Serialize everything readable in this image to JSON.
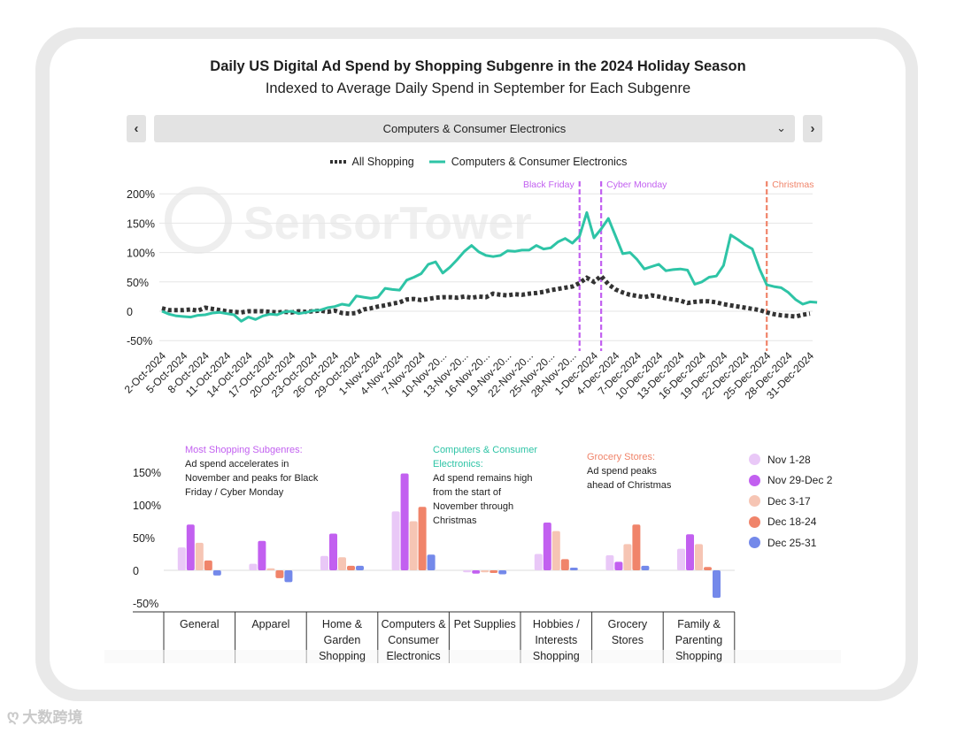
{
  "header": {
    "title": "Daily US Digital Ad Spend by Shopping Subgenre in the 2024 Holiday Season",
    "subtitle": "Indexed to Average Daily Spend in September for Each Subgenre"
  },
  "selector": {
    "prev": "‹",
    "next": "›",
    "selected": "Computers & Consumer Electronics",
    "chevron": "⌄"
  },
  "legend_top": {
    "all_shopping": "All Shopping",
    "subgenre": "Computers & Consumer Electronics"
  },
  "watermark": "SensorTower",
  "footer": {
    "logo_text": "大数跨境"
  },
  "colors": {
    "teal": "#2ec4a6",
    "dark": "#333333",
    "purple": "#c260f0",
    "christmas": "#f0846a"
  },
  "chart_data": [
    {
      "type": "line",
      "ylim": [
        -50,
        200
      ],
      "yticks": [
        "200%",
        "150%",
        "100%",
        "50%",
        "0",
        "-50%"
      ],
      "x_tick_labels": [
        "2-Oct-2024",
        "5-Oct-2024",
        "8-Oct-2024",
        "11-Oct-2024",
        "14-Oct-2024",
        "17-Oct-2024",
        "20-Oct-2024",
        "23-Oct-2024",
        "26-Oct-2024",
        "29-Oct-2024",
        "1-Nov-2024",
        "4-Nov-2024",
        "7-Nov-2024",
        "10-Nov-20...",
        "13-Nov-20...",
        "16-Nov-20...",
        "19-Nov-20...",
        "22-Nov-20...",
        "25-Nov-20...",
        "28-Nov-20...",
        "1-Dec-2024",
        "4-Dec-2024",
        "7-Dec-2024",
        "10-Dec-2024",
        "13-Dec-2024",
        "16-Dec-2024",
        "19-Dec-2024",
        "22-Dec-2024",
        "25-Dec-2024",
        "28-Dec-2024",
        "31-Dec-2024"
      ],
      "annotations": [
        {
          "label": "Black Friday",
          "day": 58,
          "color": "#c260f0"
        },
        {
          "label": "Cyber Monday",
          "day": 61,
          "color": "#c260f0"
        },
        {
          "label": "Christmas",
          "day": 84,
          "color": "#f0846a"
        }
      ],
      "series": [
        {
          "name": "All Shopping",
          "style": "dotted",
          "values": [
            5,
            2,
            2,
            2,
            3,
            1,
            6,
            4,
            2,
            0,
            -1,
            -2,
            0,
            0,
            0,
            -1,
            -2,
            -1,
            -2,
            0,
            -1,
            0,
            1,
            -1,
            1,
            -3,
            -4,
            -3,
            3,
            5,
            8,
            10,
            13,
            15,
            20,
            21,
            19,
            21,
            23,
            24,
            24,
            23,
            25,
            23,
            25,
            24,
            30,
            28,
            27,
            29,
            28,
            30,
            31,
            33,
            36,
            38,
            40,
            42,
            48,
            57,
            50,
            60,
            46,
            37,
            32,
            28,
            26,
            24,
            27,
            25,
            22,
            20,
            18,
            14,
            16,
            17,
            17,
            15,
            12,
            10,
            8,
            6,
            4,
            2,
            -2,
            -5,
            -7,
            -8,
            -9,
            -6,
            -4
          ]
        },
        {
          "name": "Computers & Consumer Electronics",
          "style": "solid",
          "values": [
            0,
            -5,
            -8,
            -9,
            -10,
            -7,
            -6,
            -3,
            -2,
            -4,
            -6,
            -17,
            -10,
            -14,
            -8,
            -5,
            -6,
            -1,
            0,
            -4,
            -2,
            1,
            2,
            6,
            8,
            12,
            10,
            26,
            24,
            22,
            24,
            39,
            37,
            36,
            53,
            58,
            64,
            80,
            84,
            65,
            75,
            88,
            102,
            112,
            101,
            95,
            93,
            95,
            103,
            102,
            104,
            104,
            112,
            106,
            108,
            118,
            124,
            116,
            128,
            168,
            125,
            140,
            158,
            128,
            98,
            100,
            88,
            72,
            76,
            80,
            69,
            71,
            72,
            70,
            46,
            50,
            58,
            60,
            78,
            130,
            122,
            113,
            106,
            72,
            45,
            42,
            40,
            32,
            20,
            12,
            16,
            15
          ]
        }
      ]
    },
    {
      "type": "bar",
      "ylim": [
        -50,
        150
      ],
      "yticks": [
        "150%",
        "100%",
        "50%",
        "0",
        "-50%"
      ],
      "categories": [
        "General",
        "Apparel",
        "Home & Garden Shopping",
        "Computers & Consumer Electronics",
        "Pet Supplies",
        "Hobbies / Interests Shopping",
        "Grocery Stores",
        "Family & Parenting Shopping"
      ],
      "series": [
        {
          "name": "Nov 1-28",
          "color": "#e9c8f7",
          "values": [
            35,
            10,
            22,
            90,
            -3,
            25,
            23,
            33
          ]
        },
        {
          "name": "Nov 29-Dec 2",
          "color": "#c260f0",
          "values": [
            70,
            45,
            56,
            148,
            -5,
            73,
            13,
            55
          ]
        },
        {
          "name": "Dec 3-17",
          "color": "#f6c5b4",
          "values": [
            42,
            3,
            20,
            75,
            -3,
            60,
            40,
            40
          ]
        },
        {
          "name": "Dec 18-24",
          "color": "#f0846a",
          "values": [
            15,
            -12,
            7,
            97,
            -4,
            17,
            70,
            5
          ]
        },
        {
          "name": "Dec 25-31",
          "color": "#7489ea",
          "values": [
            -8,
            -18,
            7,
            24,
            -6,
            4,
            7,
            -42
          ]
        }
      ],
      "annotations": [
        {
          "heading": "Most Shopping Subgenres:",
          "body": [
            "Ad spend accelerates in",
            "November and peaks for Black",
            "Friday / Cyber Monday"
          ],
          "color": "#c260f0"
        },
        {
          "heading": "Computers & Consumer Electronics:",
          "heading_lines": [
            "Computers & Consumer",
            "Electronics:"
          ],
          "body": [
            "Ad spend remains high",
            "from the start of",
            "November through",
            "Christmas"
          ],
          "color": "#2ec4a6"
        },
        {
          "heading": "Grocery Stores:",
          "body": [
            "Ad spend peaks",
            "ahead of Christmas"
          ],
          "color": "#f0846a"
        }
      ],
      "category_lines": [
        [
          "General"
        ],
        [
          "Apparel"
        ],
        [
          "Home &",
          "Garden",
          "Shopping"
        ],
        [
          "Computers &",
          "Consumer",
          "Electronics"
        ],
        [
          "Pet Supplies"
        ],
        [
          "Hobbies /",
          "Interests",
          "Shopping"
        ],
        [
          "Grocery",
          "Stores"
        ],
        [
          "Family &",
          "Parenting",
          "Shopping"
        ]
      ]
    }
  ]
}
